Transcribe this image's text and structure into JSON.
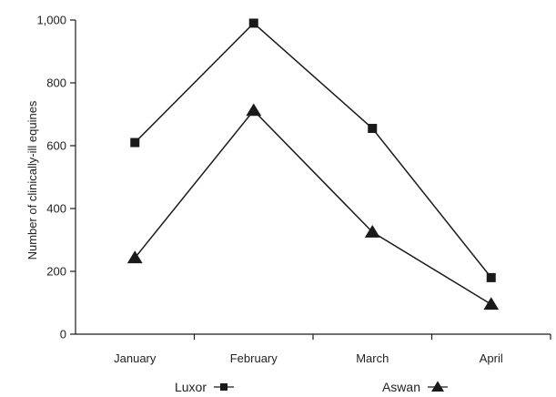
{
  "chart_data": {
    "type": "line",
    "title": "",
    "xlabel": "",
    "ylabel": "Number of clinically-ill equines",
    "categories": [
      "January",
      "February",
      "March",
      "April"
    ],
    "ylim": [
      0,
      1000
    ],
    "yticks": [
      0,
      200,
      400,
      600,
      800,
      1000
    ],
    "ytick_labels": [
      "0",
      "200",
      "400",
      "600",
      "800",
      "1,000"
    ],
    "grid": false,
    "legend_position": "bottom",
    "series": [
      {
        "name": "Luxor",
        "marker": "square",
        "values": [
          610,
          990,
          655,
          180
        ]
      },
      {
        "name": "Aswan",
        "marker": "triangle",
        "values": [
          243,
          712,
          325,
          95
        ]
      }
    ],
    "colors": {
      "line": "#1a1a1a",
      "marker": "#1a1a1a",
      "axis": "#1a1a1a"
    }
  }
}
